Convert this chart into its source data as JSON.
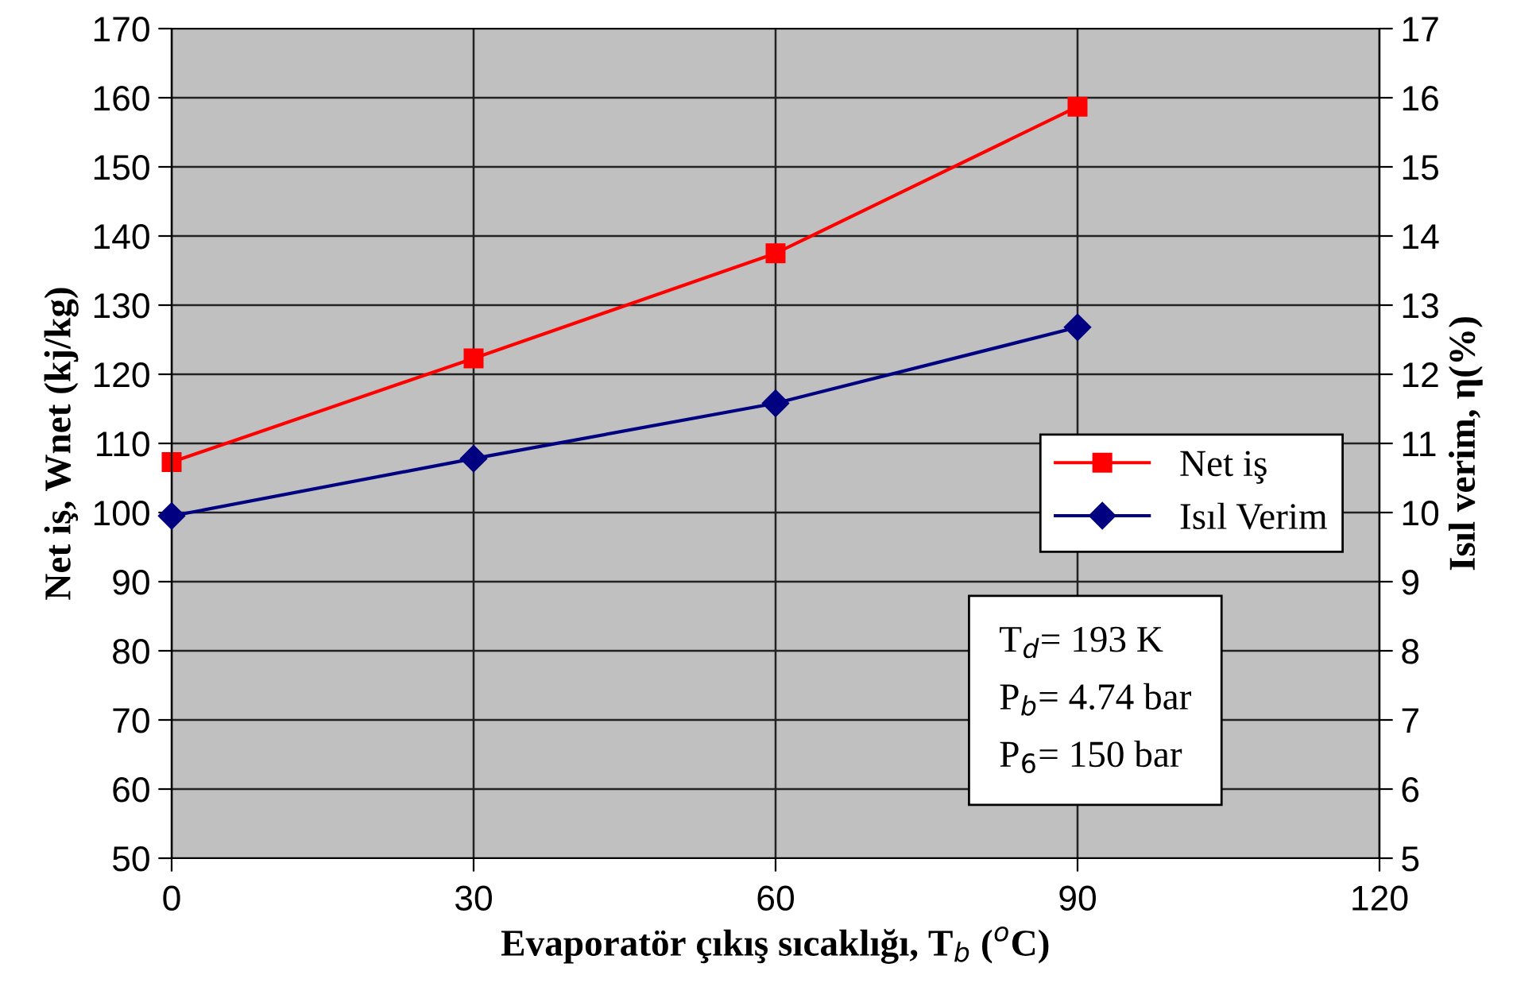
{
  "chart_data": {
    "type": "line",
    "x": [
      0,
      30,
      60,
      90
    ],
    "xlabel": "Evaporatör çıkış sıcaklığı, T$_{b}$ ($^{o}$C)",
    "ylabel": "Net iş, Wnet (kj/kg)",
    "y2label": "Isıl verim, η(%)",
    "series": [
      {
        "name": "Net iş",
        "color": "#ff0000",
        "marker": "square",
        "values": [
          107.3,
          122.3,
          137.5,
          158.7
        ]
      },
      {
        "name": "Isıl Verim",
        "color": "#000080",
        "marker": "diamond",
        "axis": "y2",
        "values": [
          9.95,
          10.78,
          11.58,
          12.68
        ]
      }
    ],
    "xlim": [
      0,
      120
    ],
    "xticks": [
      0,
      30,
      60,
      90,
      120
    ],
    "ylim": [
      50,
      170
    ],
    "yticks": [
      50,
      60,
      70,
      80,
      90,
      100,
      110,
      120,
      130,
      140,
      150,
      160,
      170
    ],
    "y2lim": [
      5,
      17
    ],
    "y2ticks": [
      5,
      6,
      7,
      8,
      9,
      10,
      11,
      12,
      13,
      14,
      15,
      16,
      17
    ],
    "grid": true,
    "legend": "right",
    "annotations": [
      "T$_{d}$= 193 K",
      "P$_{b}$= 4.74 bar",
      "P$_{6}$= 150 bar"
    ]
  }
}
